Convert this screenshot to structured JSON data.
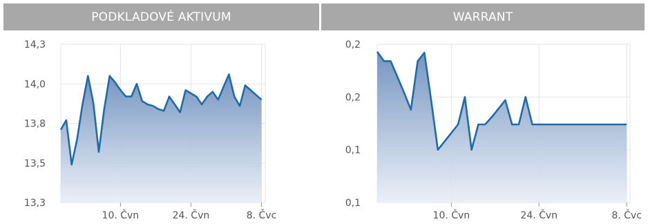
{
  "panels": {
    "left": {
      "title": "PODKLADOVÉ AKTIVUM"
    },
    "right": {
      "title": "WARRANT"
    }
  },
  "colors": {
    "line": "#1f6aa8",
    "fill_top": "#6d8fbd",
    "fill_bottom": "#e8eef6",
    "grid": "#e4e4e4",
    "axis_text": "#555555",
    "header_bg": "#a8a8a8"
  },
  "chart_data": [
    {
      "type": "area",
      "title": "PODKLADOVÉ AKTIVUM",
      "x_tick_labels": [
        "10. Čvn",
        "24. Čvn",
        "8. Čvc"
      ],
      "x_tick_index": [
        11,
        24,
        37
      ],
      "y_tick_labels": [
        "14,3",
        "14,0",
        "13,8",
        "13,5",
        "13,3"
      ],
      "ylim": [
        13.3,
        14.3
      ],
      "xlim": [
        0,
        37.7
      ],
      "grid": true,
      "values": [
        13.76,
        13.82,
        13.54,
        13.7,
        13.92,
        14.1,
        13.93,
        13.62,
        13.89,
        14.1,
        14.06,
        14.01,
        13.97,
        13.97,
        14.05,
        13.94,
        13.92,
        13.91,
        13.89,
        13.88,
        13.97,
        13.92,
        13.87,
        14.01,
        13.99,
        13.97,
        13.92,
        13.97,
        14.0,
        13.95,
        14.03,
        14.11,
        13.97,
        13.91,
        14.04,
        14.01,
        13.98,
        13.95
      ]
    },
    {
      "type": "area",
      "title": "WARRANT",
      "x_tick_labels": [
        "10. Čvn",
        "24. Čvn",
        "8. Čvc"
      ],
      "x_tick_index": [
        11,
        24,
        37
      ],
      "y_tick_labels": [
        "0,2",
        "0,2",
        "0,1",
        "0,1"
      ],
      "ylim": [
        0.1,
        0.25
      ],
      "xlim": [
        0,
        37.5
      ],
      "grid": true,
      "values": [
        0.243,
        0.234,
        0.234,
        0.219,
        0.204,
        0.188,
        0.234,
        0.242,
        0.197,
        0.15,
        0.158,
        0.166,
        0.174,
        0.2,
        0.15,
        0.174,
        0.174,
        0.181,
        0.189,
        0.197,
        0.174,
        0.174,
        0.2,
        0.174,
        0.174,
        0.174,
        0.174,
        0.174,
        0.174,
        0.174,
        0.174,
        0.174,
        0.174,
        0.174,
        0.174,
        0.174,
        0.174,
        0.174
      ]
    }
  ]
}
